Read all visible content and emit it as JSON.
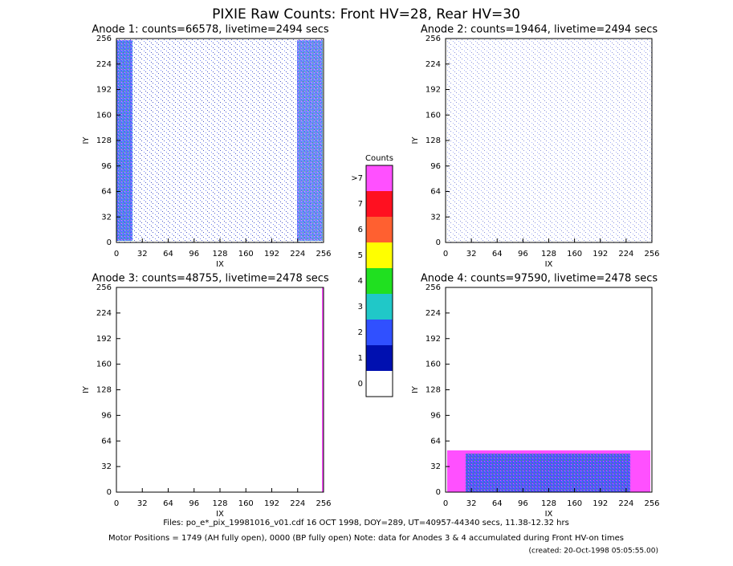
{
  "title": "PIXIE Raw Counts:  Front HV=28, Rear HV=30",
  "chart_data": [
    {
      "type": "heatmap",
      "title": "Anode 1: counts=66578, livetime=2494 secs",
      "xlabel": "IX",
      "ylabel": "IY",
      "xlim": [
        0,
        256
      ],
      "ylim": [
        0,
        256
      ],
      "xticks": [
        0,
        32,
        64,
        96,
        128,
        160,
        192,
        224,
        256
      ],
      "yticks": [
        0,
        32,
        64,
        96,
        128,
        160,
        192,
        224,
        256
      ]
    },
    {
      "type": "heatmap",
      "title": "Anode 2: counts=19464, livetime=2494 secs",
      "xlabel": "IX",
      "ylabel": "IY",
      "xlim": [
        0,
        256
      ],
      "ylim": [
        0,
        256
      ],
      "xticks": [
        0,
        32,
        64,
        96,
        128,
        160,
        192,
        224,
        256
      ],
      "yticks": [
        0,
        32,
        64,
        96,
        128,
        160,
        192,
        224,
        256
      ]
    },
    {
      "type": "heatmap",
      "title": "Anode 3: counts=48755, livetime=2478 secs",
      "xlabel": "IX",
      "ylabel": "IY",
      "xlim": [
        0,
        256
      ],
      "ylim": [
        0,
        256
      ],
      "xticks": [
        0,
        32,
        64,
        96,
        128,
        160,
        192,
        224,
        256
      ],
      "yticks": [
        0,
        32,
        64,
        96,
        128,
        160,
        192,
        224,
        256
      ]
    },
    {
      "type": "heatmap",
      "title": "Anode 4: counts=97590, livetime=2478 secs",
      "xlabel": "IX",
      "ylabel": "IY",
      "xlim": [
        0,
        256
      ],
      "ylim": [
        0,
        256
      ],
      "xticks": [
        0,
        32,
        64,
        96,
        128,
        160,
        192,
        224,
        256
      ],
      "yticks": [
        0,
        32,
        64,
        96,
        128,
        160,
        192,
        224,
        256
      ]
    }
  ],
  "colorbar": {
    "title": "Counts",
    "levels": [
      {
        "label": "0",
        "color": "#ffffff"
      },
      {
        "label": "1",
        "color": "#0010b0"
      },
      {
        "label": "2",
        "color": "#3050ff"
      },
      {
        "label": "3",
        "color": "#20c8c8"
      },
      {
        "label": "4",
        "color": "#20e020"
      },
      {
        "label": "5",
        "color": "#ffff00"
      },
      {
        "label": "6",
        "color": "#ff6030"
      },
      {
        "label": "7",
        "color": "#ff1020"
      },
      {
        "label": ">7",
        "color": "#ff50ff"
      }
    ]
  },
  "footer": [
    "Files: po_e*_pix_19981016_v01.cdf    16 OCT 1998, DOY=289, UT=40957-44340 secs, 11.38-12.32 hrs",
    "Motor Positions = 1749 (AH fully open), 0000 (BP fully open)    Note: data for Anodes 3 & 4 accumulated during Front HV-on times",
    "(created: 20-Oct-1998 05:05:55.00)"
  ]
}
